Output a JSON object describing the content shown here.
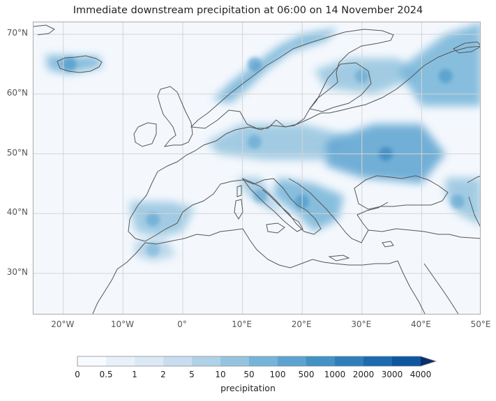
{
  "title": "Immediate downstream precipitation at 06:00 on 14 November 2024",
  "map": {
    "projection": "PlateCarree",
    "extent_lon": [
      -25,
      50
    ],
    "extent_lat": [
      23,
      72
    ],
    "lat_ticks": [
      {
        "value": 70,
        "label": "70°N"
      },
      {
        "value": 60,
        "label": "60°N"
      },
      {
        "value": 50,
        "label": "50°N"
      },
      {
        "value": 40,
        "label": "40°N"
      },
      {
        "value": 30,
        "label": "30°N"
      }
    ],
    "lon_ticks": [
      {
        "value": -20,
        "label": "20°W"
      },
      {
        "value": -10,
        "label": "10°W"
      },
      {
        "value": 0,
        "label": "0°"
      },
      {
        "value": 10,
        "label": "10°E"
      },
      {
        "value": 20,
        "label": "20°E"
      },
      {
        "value": 30,
        "label": "30°E"
      },
      {
        "value": 40,
        "label": "40°E"
      },
      {
        "value": 50,
        "label": "50°E"
      }
    ],
    "gridlines": true,
    "coastline_color": "#555555",
    "background_color": "#f4f8fd",
    "precip_regions": [
      {
        "name": "iceland",
        "lon": -19,
        "lat": 65,
        "level": 6
      },
      {
        "name": "scandinavia-coast",
        "lon": 12,
        "lat": 65,
        "level": 6
      },
      {
        "name": "finland-russia",
        "lon": 30,
        "lat": 63,
        "level": 5
      },
      {
        "name": "russia-east",
        "lon": 44,
        "lat": 63,
        "level": 6
      },
      {
        "name": "germany-poland",
        "lon": 12,
        "lat": 52,
        "level": 5
      },
      {
        "name": "ukraine",
        "lon": 34,
        "lat": 50,
        "level": 7
      },
      {
        "name": "balkans",
        "lon": 20,
        "lat": 42,
        "level": 6
      },
      {
        "name": "italy",
        "lon": 13,
        "lat": 43,
        "level": 5
      },
      {
        "name": "iberia",
        "lon": -5,
        "lat": 39,
        "level": 5
      },
      {
        "name": "morocco",
        "lon": -5,
        "lat": 34,
        "level": 4
      },
      {
        "name": "caucasus",
        "lon": 46,
        "lat": 42,
        "level": 5
      }
    ]
  },
  "colorbar": {
    "title": "precipitation",
    "labels": [
      "0",
      "0.5",
      "1",
      "2",
      "5",
      "10",
      "50",
      "100",
      "500",
      "1000",
      "2000",
      "3000",
      "4000"
    ],
    "colors": [
      "#f7fbff",
      "#e8f1fa",
      "#dbe9f6",
      "#c9ddf0",
      "#b0d2e7",
      "#94c4df",
      "#75b4d8",
      "#5ba3d0",
      "#4292c6",
      "#2e7ebc",
      "#1c6aaf",
      "#0d57a1"
    ],
    "extend": "max"
  }
}
